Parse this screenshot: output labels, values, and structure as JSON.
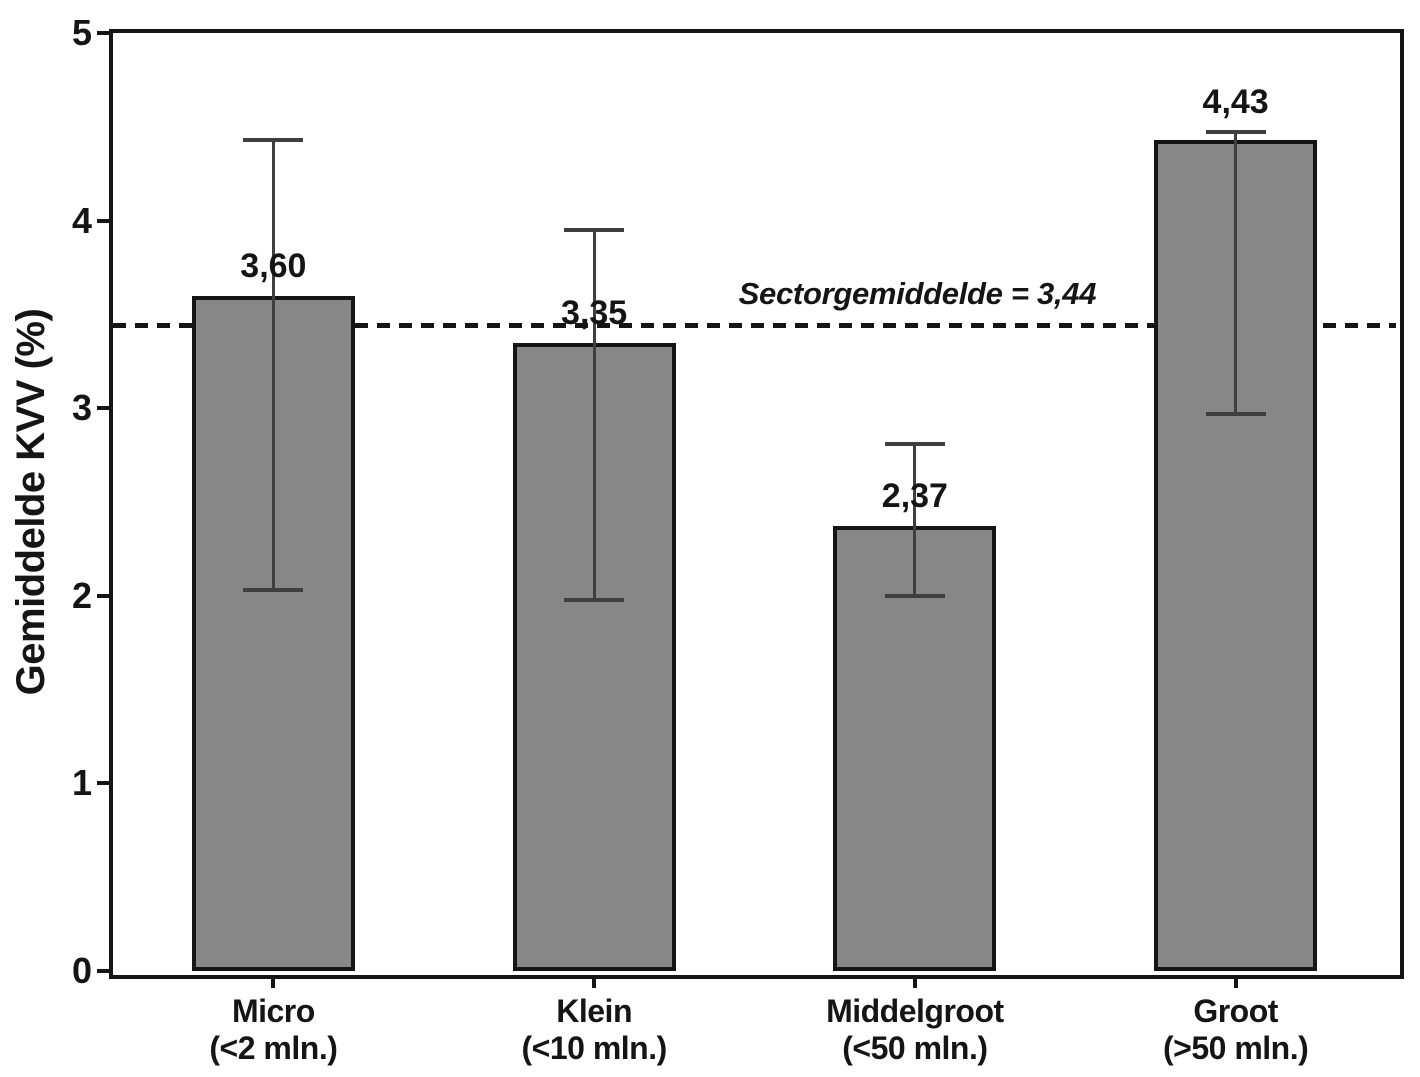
{
  "chart_data": {
    "type": "bar",
    "title": "",
    "xlabel": "",
    "ylabel": "Gemiddelde KVV (%)",
    "ylim": [
      0,
      5
    ],
    "yticks": [
      "0",
      "1",
      "2",
      "3",
      "4",
      "5"
    ],
    "grid": false,
    "legend": null,
    "categories": [
      {
        "line1": "Micro",
        "line2": "(<2 mln.)"
      },
      {
        "line1": "Klein",
        "line2": "(<10 mln.)"
      },
      {
        "line1": "Middelgroot",
        "line2": "(<50 mln.)"
      },
      {
        "line1": "Groot",
        "line2": "(>50 mln.)"
      }
    ],
    "values": [
      3.6,
      3.35,
      2.37,
      4.43
    ],
    "value_labels": [
      "3,60",
      "3,35",
      "2,37",
      "4,43"
    ],
    "error_bars": {
      "upper": [
        4.43,
        3.95,
        2.81,
        4.47
      ],
      "lower": [
        2.03,
        1.98,
        2.0,
        2.97
      ]
    },
    "reference_line": {
      "value": 3.44,
      "label": "Sectorgemiddelde = 3,44"
    },
    "colors": {
      "bar_fill": "#878787",
      "bar_edge": "#151515",
      "whisker": "#3f3f3f",
      "axis": "#151515",
      "reference": "#151515"
    }
  }
}
